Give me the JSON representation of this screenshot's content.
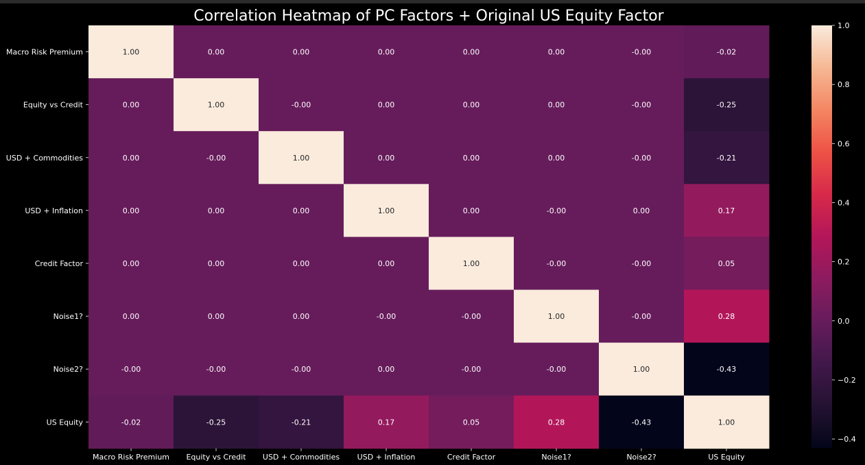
{
  "chart_data": {
    "type": "heatmap",
    "title": "Correlation Heatmap of PC Factors + Original US Equity Factor",
    "xlabel": "",
    "ylabel": "",
    "categories": [
      "Macro Risk Premium",
      "Equity vs Credit",
      "USD + Commodities",
      "USD + Inflation",
      "Credit Factor",
      "Noise1?",
      "Noise2?",
      "US Equity"
    ],
    "values": [
      [
        1.0,
        0.0,
        0.0,
        0.0,
        0.0,
        0.0,
        -0.0,
        -0.02
      ],
      [
        0.0,
        1.0,
        -0.0,
        0.0,
        0.0,
        0.0,
        -0.0,
        -0.25
      ],
      [
        0.0,
        -0.0,
        1.0,
        0.0,
        0.0,
        0.0,
        -0.0,
        -0.21
      ],
      [
        0.0,
        0.0,
        0.0,
        1.0,
        0.0,
        -0.0,
        0.0,
        0.17
      ],
      [
        0.0,
        0.0,
        0.0,
        0.0,
        1.0,
        -0.0,
        -0.0,
        0.05
      ],
      [
        0.0,
        0.0,
        0.0,
        -0.0,
        -0.0,
        1.0,
        -0.0,
        0.28
      ],
      [
        -0.0,
        -0.0,
        -0.0,
        0.0,
        -0.0,
        -0.0,
        1.0,
        -0.43
      ],
      [
        -0.02,
        -0.25,
        -0.21,
        0.17,
        0.05,
        0.28,
        -0.43,
        1.0
      ]
    ],
    "labels": [
      [
        "1.00",
        "0.00",
        "0.00",
        "0.00",
        "0.00",
        "0.00",
        "-0.00",
        "-0.02"
      ],
      [
        "0.00",
        "1.00",
        "-0.00",
        "0.00",
        "0.00",
        "0.00",
        "-0.00",
        "-0.25"
      ],
      [
        "0.00",
        "-0.00",
        "1.00",
        "0.00",
        "0.00",
        "0.00",
        "-0.00",
        "-0.21"
      ],
      [
        "0.00",
        "0.00",
        "0.00",
        "1.00",
        "0.00",
        "-0.00",
        "0.00",
        "0.17"
      ],
      [
        "0.00",
        "0.00",
        "0.00",
        "0.00",
        "1.00",
        "-0.00",
        "-0.00",
        "0.05"
      ],
      [
        "0.00",
        "0.00",
        "0.00",
        "-0.00",
        "-0.00",
        "1.00",
        "-0.00",
        "0.28"
      ],
      [
        "-0.00",
        "-0.00",
        "-0.00",
        "0.00",
        "-0.00",
        "-0.00",
        "1.00",
        "-0.43"
      ],
      [
        "-0.02",
        "-0.25",
        "-0.21",
        "0.17",
        "0.05",
        "0.28",
        "-0.43",
        "1.00"
      ]
    ],
    "colorbar": {
      "vmin": -0.43,
      "vmax": 1.0,
      "ticks": [
        1.0,
        0.8,
        0.6,
        0.4,
        0.2,
        0.0,
        -0.2,
        -0.4
      ],
      "tick_labels": [
        "1.0",
        "0.8",
        "0.6",
        "0.4",
        "0.2",
        "0.0",
        "−0.2",
        "−0.4"
      ],
      "colormap": "rocket"
    },
    "colors": {
      "background": "#000000",
      "text": "#ffffff"
    },
    "grid": false
  }
}
